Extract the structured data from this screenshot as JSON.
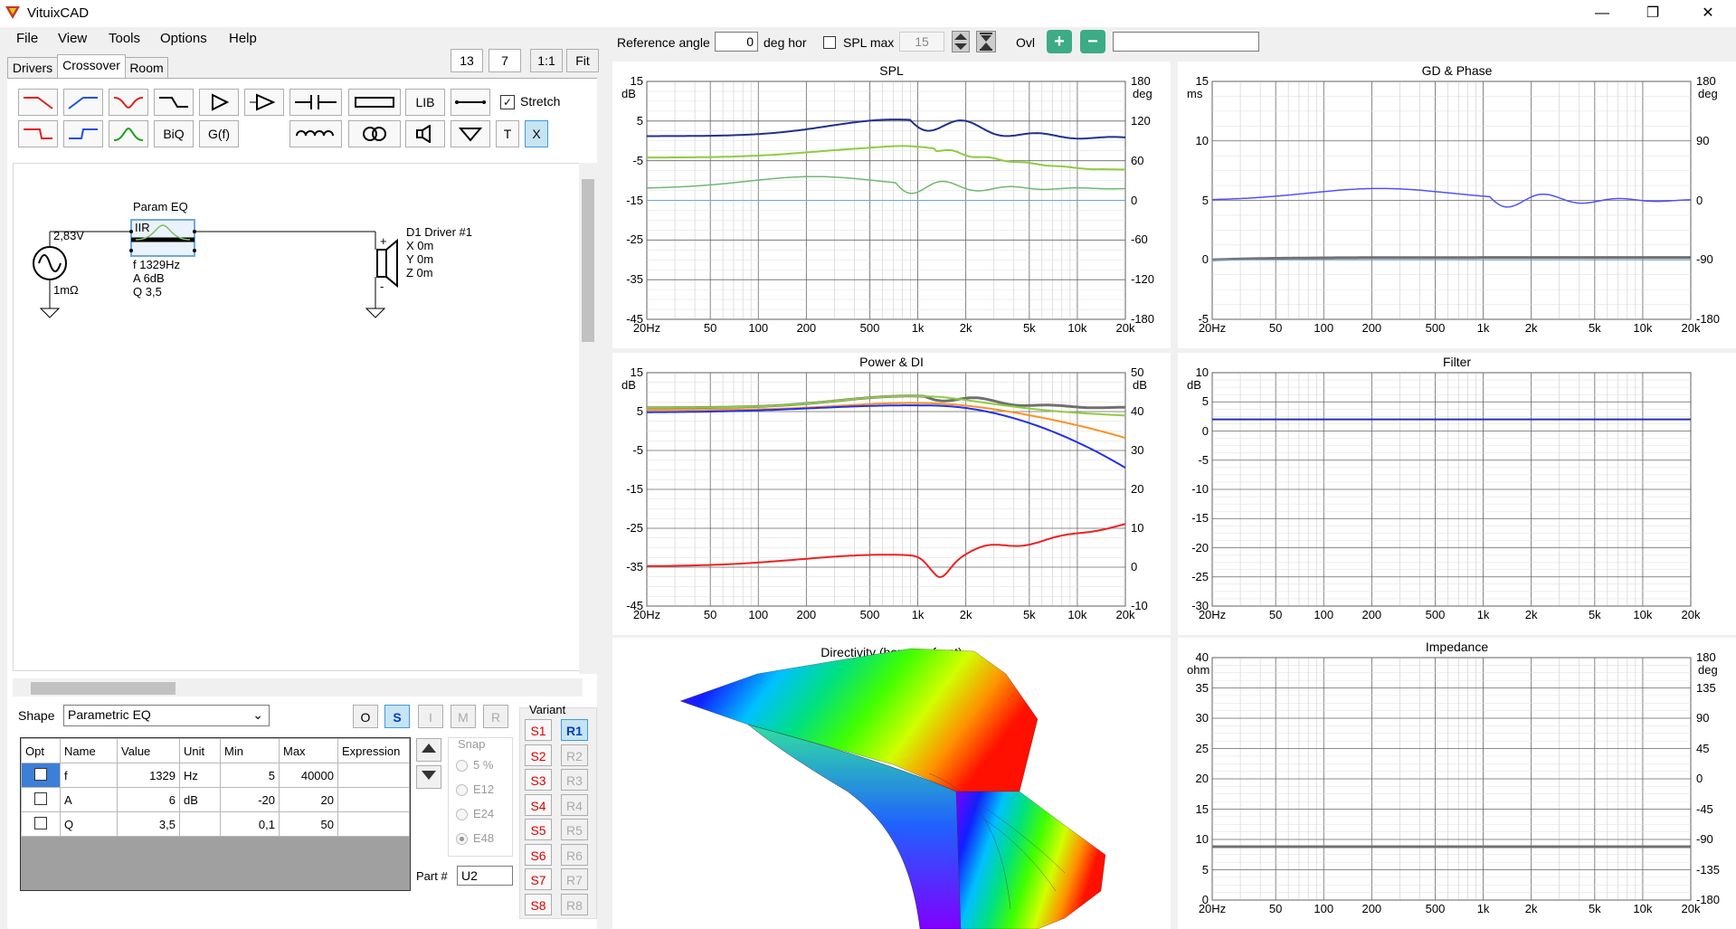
{
  "app": {
    "title": "VituixCAD",
    "min": "—",
    "restore": "❐",
    "close": "✕"
  },
  "menu": [
    "File",
    "View",
    "Tools",
    "Options",
    "Help"
  ],
  "zoom": {
    "a": "13",
    "b": "7",
    "one": "1:1",
    "fit": "Fit"
  },
  "tabs": [
    "Drivers",
    "Crossover",
    "Room"
  ],
  "tools": {
    "lib": "LIB",
    "biq": "BiQ",
    "gf": "G(f)",
    "t": "T",
    "x": "X",
    "stretch": "Stretch"
  },
  "schematic": {
    "source_voltage": "2,83V",
    "source_res": "1mΩ",
    "peq_title": "Param EQ",
    "peq_type": "IIR",
    "peq_f": "f   1329Hz",
    "peq_a": "A  6dB",
    "peq_q": "Q  3,5",
    "driver_name": "D1 Driver #1",
    "driver_x": "X 0m",
    "driver_y": "Y 0m",
    "driver_z": "Z 0m",
    "plus": "+",
    "minus": "-"
  },
  "shape": {
    "label": "Shape",
    "value": "Parametric EQ",
    "o": "O",
    "s": "S",
    "i": "I",
    "m": "M",
    "r": "R"
  },
  "params": {
    "headers": [
      "Opt",
      "Name",
      "Value",
      "Unit",
      "Min",
      "Max",
      "Expression"
    ],
    "rows": [
      {
        "name": "f",
        "value": "1329",
        "unit": "Hz",
        "min": "5",
        "max": "40000",
        "expr": ""
      },
      {
        "name": "A",
        "value": "6",
        "unit": "dB",
        "min": "-20",
        "max": "20",
        "expr": ""
      },
      {
        "name": "Q",
        "value": "3,5",
        "unit": "",
        "min": "0,1",
        "max": "50",
        "expr": ""
      }
    ]
  },
  "snap": {
    "label": "Snap",
    "options": [
      "5 %",
      "E12",
      "E24",
      "E48"
    ]
  },
  "part": {
    "label": "Part #",
    "value": "U2"
  },
  "variant": {
    "label": "Variant",
    "s": [
      "S1",
      "S2",
      "S3",
      "S4",
      "S5",
      "S6",
      "S7",
      "S8"
    ],
    "r": [
      "R1",
      "R2",
      "R3",
      "R4",
      "R5",
      "R6",
      "R7",
      "R8"
    ]
  },
  "toolbar": {
    "ref_angle_label": "Reference angle",
    "ref_angle": "0",
    "deg_hor": "deg hor",
    "spl_max": "SPL max",
    "spl_max_value": "15",
    "ovl": "Ovl",
    "plus": "+",
    "minus": "−"
  },
  "charts": {
    "spl": {
      "title": "SPL",
      "yl_unit": "dB",
      "yr_unit": "deg",
      "yl": [
        "15",
        "5",
        "-5",
        "-15",
        "-25",
        "-35",
        "-45"
      ],
      "yr": [
        "180",
        "120",
        "60",
        "0",
        "-60",
        "-120",
        "-180"
      ],
      "x": [
        "20Hz",
        "50",
        "100",
        "200",
        "500",
        "1k",
        "2k",
        "5k",
        "10k",
        "20k"
      ]
    },
    "gd": {
      "title": "GD & Phase",
      "yl_unit": "ms",
      "yr_unit": "deg",
      "yl": [
        "15",
        "10",
        "5",
        "0",
        "-5"
      ],
      "yr": [
        "180",
        "90",
        "0",
        "-90",
        "-180"
      ],
      "x": [
        "20Hz",
        "50",
        "100",
        "200",
        "500",
        "1k",
        "2k",
        "5k",
        "10k",
        "20k"
      ]
    },
    "power": {
      "title": "Power & DI",
      "yl_unit": "dB",
      "yr_unit": "dB",
      "yl": [
        "15",
        "5",
        "-5",
        "-15",
        "-25",
        "-35",
        "-45"
      ],
      "yr": [
        "50",
        "40",
        "30",
        "20",
        "10",
        "0",
        "-10"
      ],
      "x": [
        "20Hz",
        "50",
        "100",
        "200",
        "500",
        "1k",
        "2k",
        "5k",
        "10k",
        "20k"
      ]
    },
    "filter": {
      "title": "Filter",
      "yl_unit": "dB",
      "yl": [
        "10",
        "5",
        "0",
        "-5",
        "-10",
        "-15",
        "-20",
        "-25",
        "-30"
      ],
      "x": [
        "20Hz",
        "50",
        "100",
        "200",
        "500",
        "1k",
        "2k",
        "5k",
        "10k",
        "20k"
      ]
    },
    "dir": {
      "title": "Directivity (hor, neg front)"
    },
    "imp": {
      "title": "Impedance",
      "yl_unit": "ohm",
      "yr_unit": "deg",
      "yl": [
        "40",
        "35",
        "30",
        "25",
        "20",
        "15",
        "10",
        "5",
        "0"
      ],
      "yr": [
        "180",
        "135",
        "90",
        "45",
        "0",
        "-45",
        "-90",
        "-135",
        "-180"
      ],
      "x": [
        "20Hz",
        "50",
        "100",
        "200",
        "500",
        "1k",
        "2k",
        "5k",
        "10k",
        "20k"
      ]
    }
  }
}
